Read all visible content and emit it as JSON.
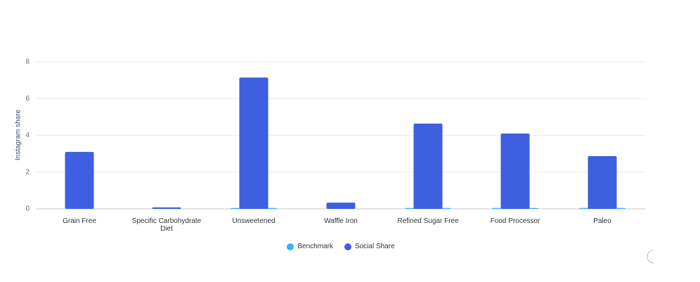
{
  "chart_data": {
    "type": "bar",
    "y_label": "Instagram share",
    "categories": [
      "Grain Free",
      "Specific Carbohydrate Diet",
      "Unsweetened",
      "Waffle Iron",
      "Refined Sugar Free",
      "Food Processor",
      "Paleo"
    ],
    "series": [
      {
        "name": "Benchmark",
        "color": "#35b3f2",
        "values": [
          0,
          0,
          0.05,
          0,
          0.05,
          0.05,
          0.05
        ]
      },
      {
        "name": "Social Share",
        "color": "#3d5fe0",
        "values": [
          3.1,
          0.08,
          7.15,
          0.34,
          4.64,
          4.1,
          2.87
        ]
      }
    ],
    "ylim": [
      0,
      8
    ],
    "yticks": [
      0,
      2,
      4,
      6,
      8
    ],
    "grid": true
  }
}
